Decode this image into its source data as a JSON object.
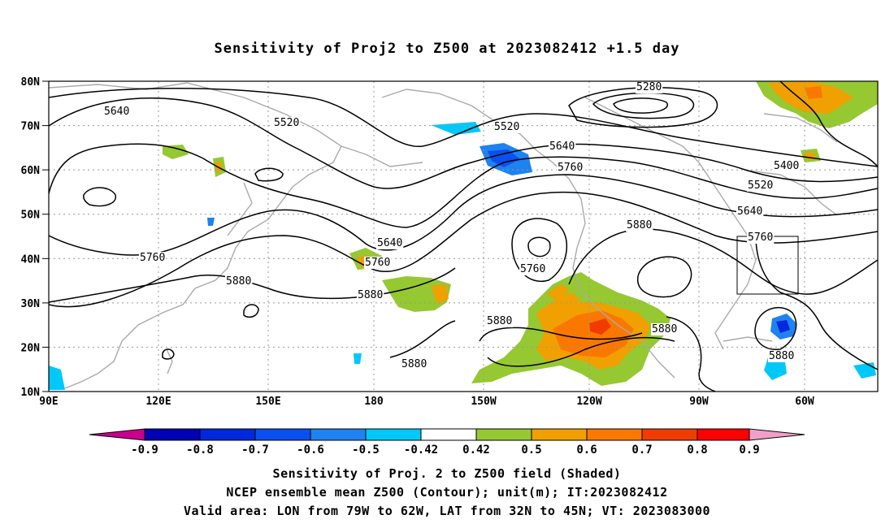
{
  "title": "Sensitivity of Proj2 to Z500 at 2023082412 +1.5 day",
  "lat_labels": [
    "80N",
    "70N",
    "60N",
    "50N",
    "40N",
    "30N",
    "20N",
    "10N"
  ],
  "lon_labels": [
    "90E",
    "120E",
    "150E",
    "180",
    "150W",
    "120W",
    "90W",
    "60W"
  ],
  "contour_labels": [
    "5640",
    "5520",
    "5280",
    "5520",
    "5640",
    "5760",
    "5400",
    "5520",
    "5640",
    "5760",
    "5760",
    "5640",
    "5760",
    "5880",
    "5760",
    "5880",
    "5880",
    "5880",
    "5880",
    "5880",
    "5880"
  ],
  "colorbar": {
    "labels": [
      "-0.9",
      "-0.8",
      "-0.7",
      "-0.6",
      "-0.5",
      "-0.42",
      "0.42",
      "0.5",
      "0.6",
      "0.7",
      "0.8",
      "0.9"
    ],
    "colors": [
      "#c8008c",
      "#0000b4",
      "#0028dc",
      "#0a50f0",
      "#1e82f0",
      "#00c8fa",
      "#ffffff",
      "#96c832",
      "#f0a000",
      "#fa7800",
      "#f03c00",
      "#ff0000",
      "#f0a0c8"
    ]
  },
  "footer": [
    "Sensitivity of Proj. 2 to Z500 field (Shaded)",
    "NCEP ensemble mean Z500 (Contour); unit(m); IT:2023082412",
    "Valid area: LON from 79W to 62W, LAT from 32N to 45N; VT: 2023083000"
  ]
}
